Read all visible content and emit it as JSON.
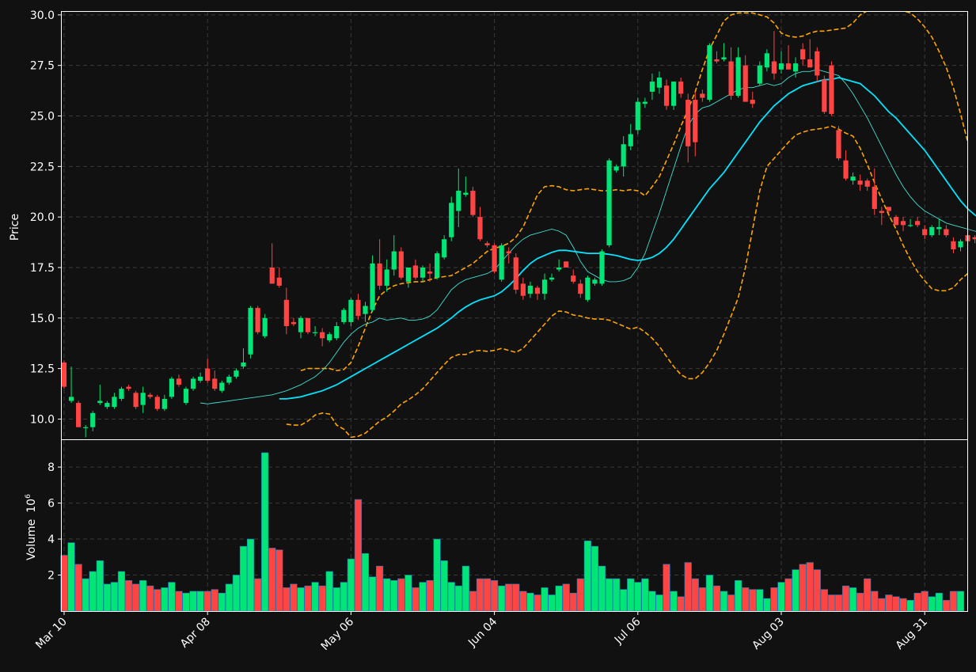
{
  "colors": {
    "background": "#111111",
    "up": "#00e676",
    "down": "#ff4444",
    "ma_fast": "#40e0d0",
    "ma_slow": "#00e5ff",
    "bands": "#ffa500",
    "grid": "#3a3a3a",
    "text": "#ffffff"
  },
  "chart_data": {
    "type": "candlestick",
    "price_panel": {
      "ylabel": "Price",
      "ylim": [
        9.0,
        30.15
      ],
      "yticks": [
        "10.0",
        "12.5",
        "15.0",
        "17.5",
        "20.0",
        "22.5",
        "25.0",
        "27.5",
        "30.0"
      ],
      "grid": true,
      "candles_ohlc": [
        [
          12.8,
          12.9,
          11.5,
          11.6
        ],
        [
          10.9,
          12.6,
          10.8,
          11.1
        ],
        [
          10.8,
          10.9,
          9.6,
          9.6
        ],
        [
          9.6,
          9.7,
          9.1,
          9.6
        ],
        [
          9.6,
          10.4,
          9.4,
          10.3
        ],
        [
          10.8,
          11.7,
          10.7,
          10.9
        ],
        [
          10.6,
          10.9,
          10.5,
          10.8
        ],
        [
          10.6,
          11.3,
          10.5,
          11.1
        ],
        [
          11.0,
          11.6,
          10.9,
          11.5
        ],
        [
          11.6,
          11.7,
          11.4,
          11.5
        ],
        [
          11.3,
          11.4,
          10.5,
          10.6
        ],
        [
          10.7,
          11.6,
          10.3,
          11.3
        ],
        [
          11.2,
          11.3,
          11.0,
          11.1
        ],
        [
          11.1,
          11.2,
          10.4,
          10.5
        ],
        [
          10.5,
          11.2,
          10.4,
          11.0
        ],
        [
          11.1,
          12.1,
          11.0,
          12.0
        ],
        [
          12.0,
          12.2,
          11.6,
          11.7
        ],
        [
          10.8,
          11.6,
          10.7,
          11.5
        ],
        [
          11.5,
          12.1,
          11.4,
          12.0
        ],
        [
          11.9,
          12.3,
          11.8,
          12.1
        ],
        [
          12.5,
          13.0,
          11.8,
          11.9
        ],
        [
          12.0,
          12.4,
          11.4,
          11.5
        ],
        [
          11.4,
          11.9,
          11.3,
          11.8
        ],
        [
          11.8,
          12.2,
          11.7,
          12.1
        ],
        [
          12.1,
          12.5,
          12.0,
          12.4
        ],
        [
          12.6,
          13.5,
          12.5,
          12.8
        ],
        [
          13.2,
          15.6,
          13.0,
          15.5
        ],
        [
          15.5,
          15.6,
          14.2,
          14.3
        ],
        [
          14.1,
          15.2,
          14.0,
          15.0
        ],
        [
          17.5,
          18.7,
          16.7,
          16.7
        ],
        [
          17.0,
          17.5,
          16.5,
          16.6
        ],
        [
          15.9,
          16.5,
          14.2,
          14.6
        ],
        [
          14.8,
          15.0,
          14.6,
          14.7
        ],
        [
          14.3,
          15.1,
          14.0,
          15.0
        ],
        [
          15.0,
          15.0,
          14.2,
          14.3
        ],
        [
          14.3,
          14.6,
          14.1,
          14.3
        ],
        [
          14.3,
          14.5,
          13.6,
          14.0
        ],
        [
          13.9,
          14.3,
          13.8,
          14.2
        ],
        [
          14.0,
          14.8,
          13.9,
          14.6
        ],
        [
          14.8,
          15.5,
          14.7,
          15.4
        ],
        [
          14.8,
          16.0,
          14.6,
          15.9
        ],
        [
          15.9,
          16.2,
          14.9,
          15.1
        ],
        [
          15.2,
          15.8,
          14.8,
          15.6
        ],
        [
          15.4,
          18.1,
          15.3,
          17.7
        ],
        [
          17.7,
          18.9,
          16.4,
          16.6
        ],
        [
          16.6,
          17.9,
          16.3,
          17.4
        ],
        [
          17.4,
          19.1,
          17.1,
          18.3
        ],
        [
          18.3,
          18.5,
          16.9,
          17.0
        ],
        [
          16.8,
          17.5,
          16.5,
          17.5
        ],
        [
          17.6,
          17.9,
          16.9,
          17.0
        ],
        [
          17.0,
          17.6,
          16.8,
          17.5
        ],
        [
          17.3,
          17.7,
          16.8,
          17.2
        ],
        [
          17.0,
          18.3,
          16.9,
          18.2
        ],
        [
          18.0,
          19.1,
          17.9,
          18.9
        ],
        [
          19.0,
          21.0,
          18.8,
          20.7
        ],
        [
          20.3,
          22.4,
          19.5,
          21.3
        ],
        [
          21.1,
          22.0,
          21.0,
          21.2
        ],
        [
          21.3,
          21.5,
          20.0,
          20.1
        ],
        [
          20.0,
          20.5,
          18.8,
          18.9
        ],
        [
          18.7,
          18.8,
          18.5,
          18.6
        ],
        [
          18.6,
          18.7,
          17.2,
          17.3
        ],
        [
          16.9,
          18.7,
          16.8,
          18.6
        ],
        [
          18.3,
          18.5,
          17.7,
          18.2
        ],
        [
          18.0,
          18.2,
          16.2,
          16.4
        ],
        [
          16.7,
          17.0,
          15.9,
          16.1
        ],
        [
          16.2,
          16.8,
          16.0,
          16.6
        ],
        [
          16.5,
          16.6,
          15.9,
          16.2
        ],
        [
          16.2,
          17.2,
          15.9,
          16.9
        ],
        [
          16.9,
          17.2,
          16.8,
          17.0
        ],
        [
          17.4,
          17.9,
          17.3,
          17.5
        ],
        [
          17.8,
          17.8,
          17.5,
          17.5
        ],
        [
          17.1,
          17.4,
          16.7,
          16.8
        ],
        [
          16.7,
          16.9,
          16.0,
          16.2
        ],
        [
          15.9,
          17.1,
          15.8,
          17.0
        ],
        [
          16.7,
          17.0,
          16.6,
          16.9
        ],
        [
          16.7,
          18.4,
          16.6,
          18.3
        ],
        [
          18.6,
          22.9,
          18.5,
          22.8
        ],
        [
          22.3,
          22.6,
          22.2,
          22.5
        ],
        [
          22.5,
          24.0,
          22.0,
          23.6
        ],
        [
          23.5,
          24.6,
          23.3,
          24.1
        ],
        [
          24.3,
          25.9,
          24.1,
          25.7
        ],
        [
          25.6,
          25.9,
          25.4,
          25.7
        ],
        [
          26.2,
          27.1,
          25.8,
          26.7
        ],
        [
          26.4,
          27.2,
          26.1,
          26.9
        ],
        [
          26.5,
          26.8,
          25.3,
          25.5
        ],
        [
          25.5,
          26.7,
          25.3,
          26.7
        ],
        [
          26.7,
          26.9,
          25.9,
          26.1
        ],
        [
          25.8,
          26.1,
          22.7,
          23.5
        ],
        [
          25.8,
          26.2,
          23.0,
          23.7
        ],
        [
          26.1,
          26.3,
          25.7,
          25.9
        ],
        [
          25.8,
          28.6,
          25.7,
          28.5
        ],
        [
          27.8,
          28.2,
          27.6,
          27.7
        ],
        [
          27.8,
          28.6,
          27.7,
          27.9
        ],
        [
          27.7,
          28.4,
          25.8,
          26.0
        ],
        [
          26.0,
          28.4,
          25.9,
          27.9
        ],
        [
          27.5,
          28.0,
          26.7,
          25.7
        ],
        [
          25.8,
          26.2,
          25.4,
          25.6
        ],
        [
          26.6,
          27.7,
          26.5,
          27.5
        ],
        [
          27.4,
          28.3,
          27.2,
          28.1
        ],
        [
          27.7,
          29.2,
          26.8,
          27.1
        ],
        [
          27.3,
          28.2,
          27.1,
          27.6
        ],
        [
          27.6,
          28.5,
          27.4,
          27.3
        ],
        [
          27.2,
          27.9,
          26.9,
          27.6
        ],
        [
          28.3,
          28.6,
          27.5,
          27.8
        ],
        [
          27.8,
          28.8,
          27.6,
          27.4
        ],
        [
          28.2,
          28.4,
          26.7,
          27.0
        ],
        [
          26.8,
          27.0,
          25.1,
          25.2
        ],
        [
          27.5,
          27.7,
          25.0,
          25.1
        ],
        [
          24.3,
          24.5,
          22.8,
          22.9
        ],
        [
          22.8,
          23.3,
          21.8,
          21.9
        ],
        [
          21.8,
          22.2,
          21.6,
          22.0
        ],
        [
          21.8,
          22.1,
          21.3,
          21.6
        ],
        [
          21.8,
          21.9,
          21.3,
          21.5
        ],
        [
          21.5,
          22.4,
          20.1,
          20.4
        ],
        [
          20.3,
          20.5,
          19.6,
          20.2
        ],
        [
          20.5,
          20.5,
          20.2,
          20.3
        ],
        [
          20.0,
          20.1,
          19.6,
          19.6
        ],
        [
          19.8,
          20.0,
          19.3,
          19.6
        ],
        [
          19.6,
          19.9,
          19.5,
          19.6
        ],
        [
          19.8,
          20.0,
          19.5,
          19.6
        ],
        [
          19.4,
          19.6,
          18.9,
          19.1
        ],
        [
          19.1,
          19.6,
          19.0,
          19.5
        ],
        [
          19.4,
          19.9,
          19.1,
          19.5
        ],
        [
          19.4,
          19.6,
          19.0,
          19.1
        ],
        [
          18.8,
          19.0,
          18.2,
          18.4
        ],
        [
          18.5,
          18.9,
          18.3,
          18.8
        ],
        [
          19.1,
          19.3,
          18.6,
          18.8
        ],
        [
          19.0,
          19.1,
          18.7,
          18.9
        ],
        [
          18.6,
          19.1,
          18.5,
          18.9
        ],
        [
          18.9,
          19.2,
          18.2,
          18.4
        ]
      ],
      "ma_fast": [
        10.8,
        10.75,
        10.8,
        10.85,
        10.9,
        10.95,
        11.0,
        11.05,
        11.1,
        11.15,
        11.2,
        11.3,
        11.4,
        11.55,
        11.7,
        11.9,
        12.1,
        12.4,
        12.8,
        13.3,
        13.8,
        14.2,
        14.5,
        14.7,
        14.8,
        15.0,
        14.9,
        14.95,
        15.0,
        14.9,
        14.9,
        14.95,
        15.1,
        15.4,
        15.9,
        16.4,
        16.7,
        16.9,
        17.0,
        17.1,
        17.2,
        17.4,
        17.8,
        18.2,
        18.6,
        18.9,
        19.1,
        19.2,
        19.3,
        19.4,
        19.3,
        19.1,
        18.5,
        17.8,
        17.3,
        17.1,
        16.9,
        16.8,
        16.8,
        16.85,
        17.0,
        17.5,
        18.2,
        19.2,
        20.2,
        21.3,
        22.4,
        23.5,
        24.5,
        25.1,
        25.4,
        25.5,
        25.7,
        25.9,
        26.1,
        26.3,
        26.4,
        26.4,
        26.5,
        26.6,
        26.5,
        26.6,
        26.9,
        27.1,
        27.2,
        27.2,
        27.3,
        27.2,
        27.1,
        27.0,
        26.6,
        26.1,
        25.5,
        24.9,
        24.2,
        23.5,
        22.8,
        22.1,
        21.5,
        21.0,
        20.6,
        20.3,
        20.1,
        19.9,
        19.7,
        19.6,
        19.5,
        19.4,
        19.3,
        19.2,
        19.1
      ],
      "ma_slow": [
        11.0,
        11.0,
        11.05,
        11.1,
        11.2,
        11.3,
        11.4,
        11.55,
        11.7,
        11.9,
        12.1,
        12.3,
        12.5,
        12.7,
        12.9,
        13.1,
        13.3,
        13.5,
        13.7,
        13.9,
        14.1,
        14.3,
        14.5,
        14.75,
        15.0,
        15.3,
        15.55,
        15.75,
        15.9,
        16.0,
        16.1,
        16.3,
        16.6,
        16.95,
        17.35,
        17.7,
        17.95,
        18.1,
        18.25,
        18.35,
        18.35,
        18.3,
        18.25,
        18.2,
        18.2,
        18.2,
        18.15,
        18.1,
        18.0,
        17.9,
        17.85,
        17.9,
        18.0,
        18.2,
        18.5,
        18.9,
        19.4,
        19.9,
        20.4,
        20.9,
        21.4,
        21.8,
        22.2,
        22.7,
        23.2,
        23.7,
        24.2,
        24.7,
        25.1,
        25.5,
        25.8,
        26.1,
        26.3,
        26.5,
        26.6,
        26.7,
        26.8,
        26.8,
        26.9,
        26.8,
        26.7,
        26.6,
        26.3,
        26.0,
        25.6,
        25.2,
        24.9,
        24.5,
        24.1,
        23.7,
        23.3,
        22.8,
        22.3,
        21.8,
        21.3,
        20.8,
        20.4,
        20.1,
        19.85,
        19.7
      ],
      "band_upper": [
        12.4,
        12.5,
        12.5,
        12.5,
        12.5,
        12.4,
        12.45,
        12.8,
        13.6,
        14.5,
        15.4,
        16.1,
        16.4,
        16.6,
        16.7,
        16.75,
        16.8,
        16.8,
        16.9,
        17.0,
        17.05,
        17.1,
        17.3,
        17.5,
        17.7,
        18.0,
        18.3,
        18.45,
        18.55,
        18.7,
        19.0,
        19.5,
        20.3,
        21.1,
        21.5,
        21.55,
        21.5,
        21.35,
        21.3,
        21.35,
        21.4,
        21.35,
        21.3,
        21.3,
        21.35,
        21.3,
        21.35,
        21.3,
        21.05,
        21.5,
        22.0,
        22.8,
        23.6,
        24.5,
        25.3,
        26.2,
        27.3,
        28.3,
        29.0,
        29.7,
        30.0,
        30.1,
        30.1,
        30.1,
        30.0,
        29.9,
        29.6,
        29.1,
        28.95,
        28.9,
        28.95,
        29.1,
        29.2,
        29.2,
        29.25,
        29.3,
        29.35,
        29.6,
        30.0,
        30.2,
        30.2,
        30.2,
        30.2,
        30.2,
        30.2,
        30.1,
        29.8,
        29.4,
        28.9,
        28.2,
        27.4,
        26.4,
        25.1,
        23.7,
        22.6,
        22.1,
        21.8
      ],
      "band_lower": [
        9.75,
        9.7,
        9.7,
        9.9,
        10.2,
        10.3,
        10.25,
        9.7,
        9.5,
        9.1,
        9.15,
        9.3,
        9.6,
        9.9,
        10.1,
        10.4,
        10.75,
        10.95,
        11.2,
        11.5,
        11.9,
        12.3,
        12.7,
        13.05,
        13.2,
        13.2,
        13.35,
        13.4,
        13.35,
        13.4,
        13.5,
        13.4,
        13.3,
        13.5,
        13.9,
        14.3,
        14.7,
        15.1,
        15.35,
        15.3,
        15.15,
        15.1,
        15.0,
        14.95,
        14.95,
        14.9,
        14.75,
        14.6,
        14.45,
        14.55,
        14.3,
        14.0,
        13.6,
        13.1,
        12.6,
        12.2,
        12.0,
        12.0,
        12.3,
        12.8,
        13.4,
        14.2,
        15.1,
        16.0,
        17.5,
        19.4,
        21.3,
        22.5,
        22.9,
        23.3,
        23.7,
        24.05,
        24.2,
        24.3,
        24.35,
        24.4,
        24.5,
        24.35,
        24.15,
        24.0,
        23.4,
        22.6,
        21.7,
        20.9,
        20.1,
        19.4,
        18.6,
        17.9,
        17.3,
        16.85,
        16.45,
        16.35,
        16.35,
        16.5,
        16.9,
        17.2,
        17.6,
        17.7,
        17.6
      ]
    },
    "volume_panel": {
      "ylabel": "Volume",
      "unit_label": "10^6",
      "ylim": [
        0,
        9.5
      ],
      "yticks": [
        "2",
        "4",
        "6",
        "8"
      ],
      "values": [
        3.1,
        3.8,
        2.6,
        1.8,
        2.2,
        2.8,
        1.5,
        1.6,
        2.2,
        1.7,
        1.5,
        1.7,
        1.4,
        1.2,
        1.3,
        1.6,
        1.1,
        1.0,
        1.1,
        1.1,
        1.1,
        1.2,
        1.0,
        1.5,
        2.0,
        3.6,
        4.0,
        1.8,
        8.8,
        3.5,
        3.4,
        1.3,
        1.5,
        1.3,
        1.4,
        1.6,
        1.4,
        2.2,
        1.3,
        1.6,
        2.9,
        6.2,
        3.2,
        1.9,
        2.5,
        1.8,
        1.7,
        1.8,
        2.0,
        1.3,
        1.6,
        1.7,
        4.0,
        2.8,
        1.6,
        1.4,
        2.5,
        1.1,
        1.8,
        1.8,
        1.7,
        1.4,
        1.5,
        1.5,
        1.1,
        1.0,
        0.9,
        1.3,
        0.9,
        1.4,
        1.5,
        1.0,
        1.8,
        3.9,
        3.6,
        2.5,
        1.8,
        1.8,
        1.2,
        1.8,
        1.6,
        1.8,
        1.1,
        0.9,
        2.6,
        1.1,
        0.8,
        2.7,
        1.8,
        1.3,
        2.0,
        1.4,
        1.1,
        0.9,
        1.7,
        1.3,
        1.2,
        1.2,
        0.7,
        1.3,
        1.6,
        1.8,
        2.3,
        2.6,
        2.7,
        2.3,
        1.2,
        0.9,
        0.9,
        1.4,
        1.3,
        1.0,
        1.8,
        1.1,
        0.7,
        0.9,
        0.8,
        0.7,
        0.6,
        1.0,
        1.1,
        0.8,
        1.0,
        0.6,
        1.1,
        1.1
      ]
    },
    "x_ticks": [
      "Mar 10",
      "Apr 08",
      "May 06",
      "Jun 04",
      "Jul 06",
      "Aug 03",
      "Aug 31"
    ],
    "x_tick_index": [
      0,
      20,
      40,
      60,
      80,
      100,
      120
    ]
  }
}
